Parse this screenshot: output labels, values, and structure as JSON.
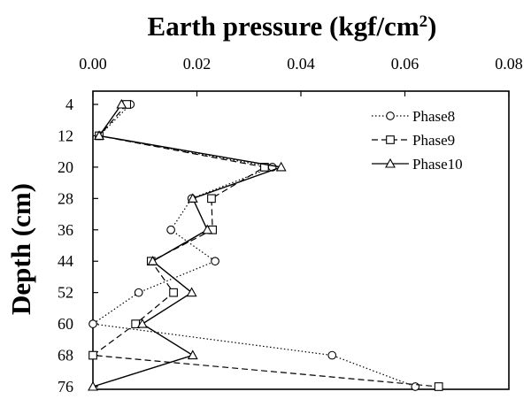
{
  "chart_data": {
    "type": "line",
    "title": "Earth pressure (kgf/cm",
    "title_sup": "2",
    "title_end": ")",
    "xlabel": "Earth pressure (kgf/cm2)",
    "ylabel": "Depth (cm)",
    "x_axis_position": "top",
    "y_axis_inverted": true,
    "xlim": [
      0,
      0.08
    ],
    "ylim": [
      76,
      4
    ],
    "x_ticks": [
      "0.00",
      "0.02",
      "0.04",
      "0.06",
      "0.08"
    ],
    "y_ticks": [
      "4",
      "12",
      "20",
      "28",
      "36",
      "44",
      "52",
      "60",
      "68",
      "76"
    ],
    "grid": false,
    "legend_position": "top-right",
    "series": [
      {
        "name": "Phase8",
        "line_style": "dotted",
        "marker": "circle",
        "color": "#000000",
        "points": [
          {
            "x": 0.0072,
            "y": 4
          },
          {
            "x": 0.0012,
            "y": 12
          },
          {
            "x": 0.0345,
            "y": 20
          },
          {
            "x": 0.019,
            "y": 28
          },
          {
            "x": 0.015,
            "y": 36
          },
          {
            "x": 0.0235,
            "y": 44
          },
          {
            "x": 0.0088,
            "y": 52
          },
          {
            "x": 0.0,
            "y": 60
          },
          {
            "x": 0.046,
            "y": 68
          },
          {
            "x": 0.062,
            "y": 76
          }
        ]
      },
      {
        "name": "Phase9",
        "line_style": "dashed",
        "marker": "square",
        "color": "#000000",
        "points": [
          {
            "x": 0.0065,
            "y": 4
          },
          {
            "x": 0.0012,
            "y": 12
          },
          {
            "x": 0.033,
            "y": 20
          },
          {
            "x": 0.0228,
            "y": 28
          },
          {
            "x": 0.023,
            "y": 36
          },
          {
            "x": 0.0112,
            "y": 44
          },
          {
            "x": 0.0155,
            "y": 52
          },
          {
            "x": 0.0082,
            "y": 60
          },
          {
            "x": 0.0,
            "y": 68
          },
          {
            "x": 0.0665,
            "y": 76
          }
        ]
      },
      {
        "name": "Phase10",
        "line_style": "solid",
        "marker": "triangle",
        "color": "#000000",
        "points": [
          {
            "x": 0.0055,
            "y": 4
          },
          {
            "x": 0.0012,
            "y": 12
          },
          {
            "x": 0.0362,
            "y": 20
          },
          {
            "x": 0.0192,
            "y": 28
          },
          {
            "x": 0.022,
            "y": 36
          },
          {
            "x": 0.0115,
            "y": 44
          },
          {
            "x": 0.019,
            "y": 52
          },
          {
            "x": 0.0095,
            "y": 60
          },
          {
            "x": 0.0192,
            "y": 68
          },
          {
            "x": 0.0,
            "y": 76
          }
        ]
      }
    ]
  }
}
